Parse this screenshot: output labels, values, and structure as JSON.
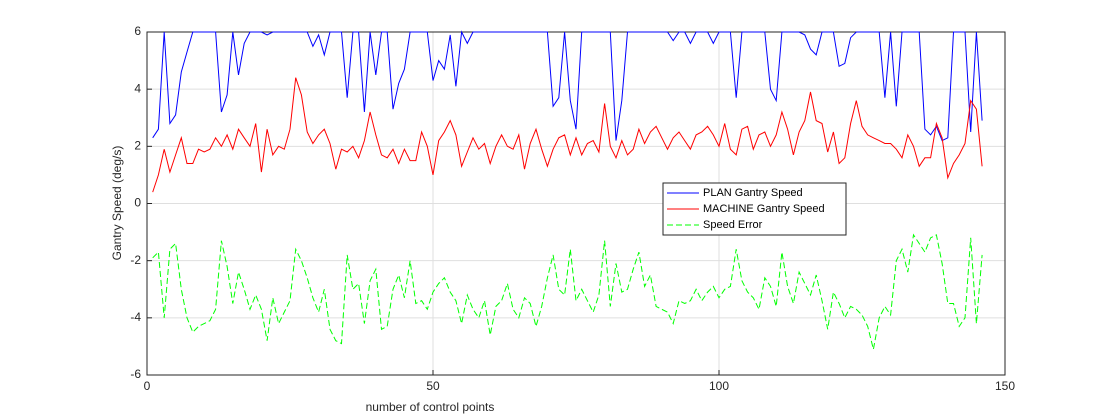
{
  "chart_data": {
    "type": "line",
    "xlabel": "number of control points",
    "ylabel": "Gantry Speed (deg/s)",
    "x": [
      1,
      2,
      3,
      4,
      5,
      6,
      7,
      8,
      9,
      10,
      11,
      12,
      13,
      14,
      15,
      16,
      17,
      18,
      19,
      20,
      21,
      22,
      23,
      24,
      25,
      26,
      27,
      28,
      29,
      30,
      31,
      32,
      33,
      34,
      35,
      36,
      37,
      38,
      39,
      40,
      41,
      42,
      43,
      44,
      45,
      46,
      47,
      48,
      49,
      50,
      51,
      52,
      53,
      54,
      55,
      56,
      57,
      58,
      59,
      60,
      61,
      62,
      63,
      64,
      65,
      66,
      67,
      68,
      69,
      70,
      71,
      72,
      73,
      74,
      75,
      76,
      77,
      78,
      79,
      80,
      81,
      82,
      83,
      84,
      85,
      86,
      87,
      88,
      89,
      90,
      91,
      92,
      93,
      94,
      95,
      96,
      97,
      98,
      99,
      100,
      101,
      102,
      103,
      104,
      105,
      106,
      107,
      108,
      109,
      110,
      111,
      112,
      113,
      114,
      115,
      116,
      117,
      118,
      119,
      120,
      121,
      122,
      123,
      124,
      125,
      126,
      127,
      128,
      129,
      130,
      131,
      132,
      133,
      134,
      135,
      136,
      137,
      138,
      139,
      140,
      141,
      142,
      143,
      144,
      145,
      146
    ],
    "series": [
      {
        "name": "PLAN Gantry Speed",
        "color": "#0000ff",
        "dash": "solid",
        "values": [
          2.3,
          2.6,
          6,
          2.8,
          3.1,
          4.6,
          5.3,
          6,
          6,
          6,
          6,
          6,
          3.2,
          3.8,
          6,
          4.5,
          5.6,
          6,
          6,
          6,
          5.9,
          6,
          6,
          6,
          6,
          6,
          6,
          6,
          5.5,
          5.9,
          5.2,
          6,
          6,
          6,
          3.7,
          6,
          6,
          3.2,
          6,
          4.5,
          6,
          6,
          3.3,
          4.2,
          4.7,
          6,
          6,
          6,
          6,
          4.3,
          5,
          4.7,
          5.9,
          4.1,
          6,
          5.6,
          6,
          6,
          6,
          6,
          6,
          6,
          6,
          6,
          6,
          6,
          6,
          6,
          6,
          6,
          3.4,
          3.7,
          6,
          3.6,
          2.6,
          6,
          6,
          6,
          6,
          6,
          6,
          2.2,
          3.6,
          6,
          6,
          6,
          6,
          6,
          6,
          6,
          6,
          5.7,
          6,
          6,
          5.6,
          6,
          6,
          6,
          5.6,
          6,
          6,
          6,
          3.7,
          6,
          6,
          6,
          6,
          6,
          4,
          3.6,
          6,
          6,
          6,
          6,
          5.9,
          5.4,
          5.2,
          6,
          6,
          6,
          4.8,
          4.9,
          5.8,
          6,
          6,
          6,
          6,
          6,
          3.7,
          6,
          3.4,
          6,
          6,
          6,
          6,
          2.6,
          2.4,
          2.7,
          2.2,
          2.3,
          6,
          6,
          6,
          2.5,
          6,
          2.9
        ]
      },
      {
        "name": "MACHINE Gantry Speed",
        "color": "#ff0000",
        "dash": "solid",
        "values": [
          0.4,
          1.0,
          1.9,
          1.1,
          1.7,
          2.3,
          1.4,
          1.4,
          1.9,
          1.8,
          1.9,
          2.3,
          2.0,
          2.4,
          1.9,
          2.6,
          2.3,
          2.0,
          2.8,
          1.1,
          2.6,
          1.7,
          2.0,
          1.9,
          2.6,
          4.4,
          3.8,
          2.5,
          2.1,
          2.4,
          2.6,
          2.1,
          1.2,
          1.9,
          1.8,
          2.0,
          1.6,
          2.2,
          3.2,
          2.4,
          1.7,
          1.6,
          1.9,
          1.4,
          1.9,
          1.5,
          1.5,
          2.5,
          2.0,
          1.0,
          2.2,
          2.5,
          2.9,
          2.4,
          1.3,
          1.8,
          2.3,
          1.9,
          2.1,
          1.4,
          2.0,
          2.4,
          2.0,
          1.9,
          2.4,
          1.2,
          2.1,
          2.6,
          1.9,
          1.3,
          1.9,
          2.3,
          2.4,
          1.7,
          2.3,
          1.7,
          2.1,
          2.2,
          1.8,
          3.5,
          2.0,
          1.6,
          2.2,
          1.7,
          1.9,
          2.6,
          2.1,
          2.5,
          2.7,
          2.3,
          1.9,
          2.3,
          2.5,
          2.2,
          1.9,
          2.4,
          2.5,
          2.7,
          2.4,
          2.0,
          2.8,
          1.9,
          1.7,
          2.6,
          2.7,
          1.9,
          2.4,
          2.5,
          2.0,
          2.4,
          3.2,
          2.6,
          1.7,
          2.5,
          2.9,
          3.9,
          2.9,
          2.8,
          1.8,
          2.5,
          1.4,
          1.6,
          2.8,
          3.6,
          2.7,
          2.4,
          2.3,
          2.2,
          2.1,
          2.1,
          1.9,
          1.6,
          2.4,
          2.0,
          1.3,
          1.6,
          1.6,
          2.8,
          2.3,
          0.9,
          1.4,
          1.7,
          2.1,
          3.6,
          3.3,
          1.3
        ]
      },
      {
        "name": "Speed Error",
        "color": "#00ff00",
        "dash": "dashed",
        "values": [
          -1.9,
          -1.7,
          -4.0,
          -1.6,
          -1.4,
          -3.0,
          -4.0,
          -4.5,
          -4.3,
          -4.2,
          -4.1,
          -3.7,
          -1.3,
          -2.2,
          -3.5,
          -2.4,
          -3.0,
          -3.7,
          -3.2,
          -3.7,
          -4.8,
          -3.3,
          -4.2,
          -3.8,
          -3.4,
          -1.6,
          -2.0,
          -2.6,
          -3.3,
          -3.8,
          -3.0,
          -4.4,
          -4.8,
          -4.9,
          -1.8,
          -3.0,
          -2.8,
          -4.2,
          -2.7,
          -2.3,
          -4.4,
          -4.3,
          -3.0,
          -2.5,
          -3.3,
          -2.0,
          -3.5,
          -3.4,
          -3.7,
          -3.1,
          -2.8,
          -2.6,
          -3.1,
          -3.4,
          -4.2,
          -3.2,
          -3.7,
          -4.0,
          -3.4,
          -4.6,
          -3.6,
          -3.4,
          -2.8,
          -3.7,
          -4.0,
          -3.3,
          -3.5,
          -4.3,
          -3.6,
          -2.6,
          -1.8,
          -3.0,
          -3.2,
          -1.6,
          -3.4,
          -3.0,
          -3.4,
          -3.8,
          -3.2,
          -1.3,
          -3.6,
          -2.1,
          -3.1,
          -3.0,
          -2.3,
          -1.7,
          -2.9,
          -2.5,
          -3.6,
          -3.7,
          -3.8,
          -4.2,
          -3.4,
          -3.5,
          -3.4,
          -3.0,
          -3.4,
          -3.1,
          -2.9,
          -3.3,
          -3.0,
          -2.9,
          -1.6,
          -2.7,
          -3.1,
          -3.3,
          -3.7,
          -2.6,
          -2.9,
          -3.6,
          -1.7,
          -2.9,
          -3.5,
          -2.4,
          -2.8,
          -3.2,
          -2.5,
          -3.4,
          -4.4,
          -3.1,
          -3.5,
          -4.0,
          -3.6,
          -3.7,
          -3.9,
          -4.3,
          -5.1,
          -4.0,
          -3.6,
          -3.9,
          -2.0,
          -1.6,
          -2.4,
          -1.1,
          -1.4,
          -1.7,
          -1.2,
          -1.1,
          -2.1,
          -3.5,
          -3.5,
          -4.3,
          -4.0,
          -1.2,
          -4.2,
          -1.8
        ]
      }
    ],
    "xlim": [
      0,
      150
    ],
    "xticks": [
      0,
      50,
      100,
      150
    ],
    "ylim": [
      -6,
      6
    ],
    "yticks": [
      -6,
      -4,
      -2,
      0,
      2,
      4,
      6
    ],
    "grid": true,
    "legend": "center-right"
  }
}
